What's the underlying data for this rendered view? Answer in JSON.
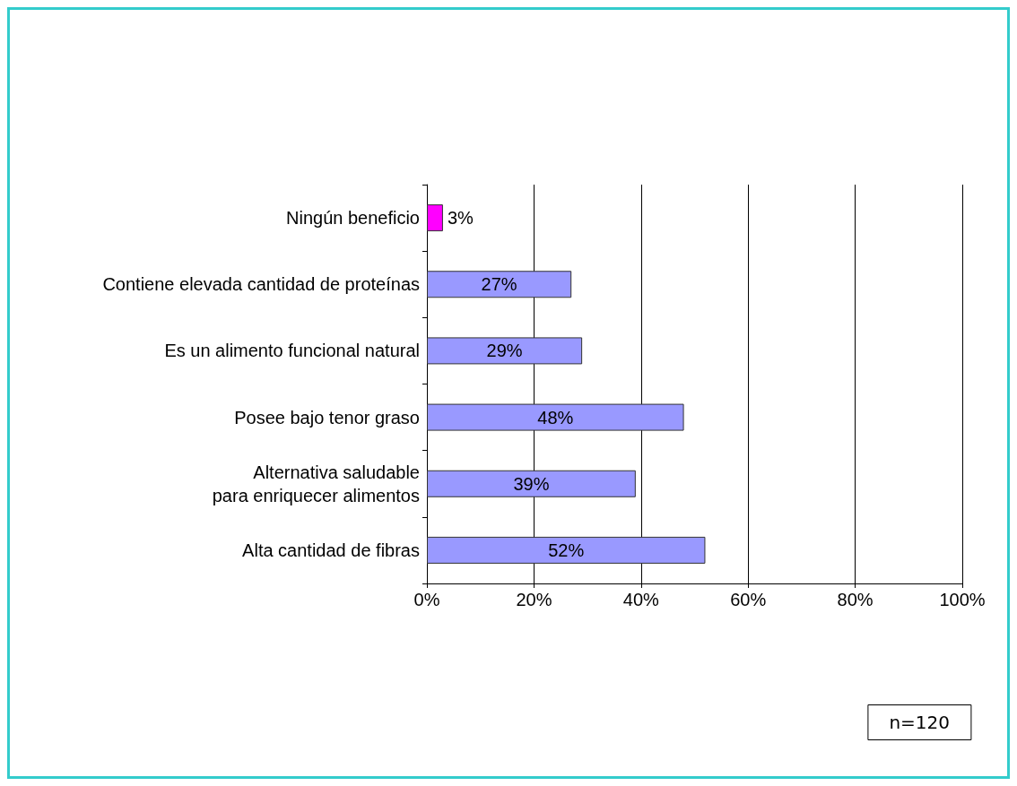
{
  "chart_data": {
    "type": "bar",
    "orientation": "horizontal",
    "categories": [
      "Ningún beneficio",
      "Contiene elevada cantidad de proteínas",
      "Es un alimento funcional natural",
      "Posee bajo tenor graso",
      "Alternativa saludable\npara enriquecer alimentos",
      "Alta cantidad de fibras"
    ],
    "values": [
      3,
      27,
      29,
      48,
      39,
      52
    ],
    "colors": [
      "#ff00ff",
      "#9999ff",
      "#9999ff",
      "#9999ff",
      "#9999ff",
      "#9999ff"
    ],
    "value_labels": [
      "3%",
      "27%",
      "29%",
      "48%",
      "39%",
      "52%"
    ],
    "xlim": [
      0,
      100
    ],
    "xticks": [
      {
        "value": 0,
        "label": "0%"
      },
      {
        "value": 20,
        "label": "20%"
      },
      {
        "value": 40,
        "label": "40%"
      },
      {
        "value": 60,
        "label": "60%"
      },
      {
        "value": 80,
        "label": "80%"
      },
      {
        "value": 100,
        "label": "100%"
      }
    ],
    "grid": "x",
    "annotations": [
      "n=120"
    ]
  }
}
